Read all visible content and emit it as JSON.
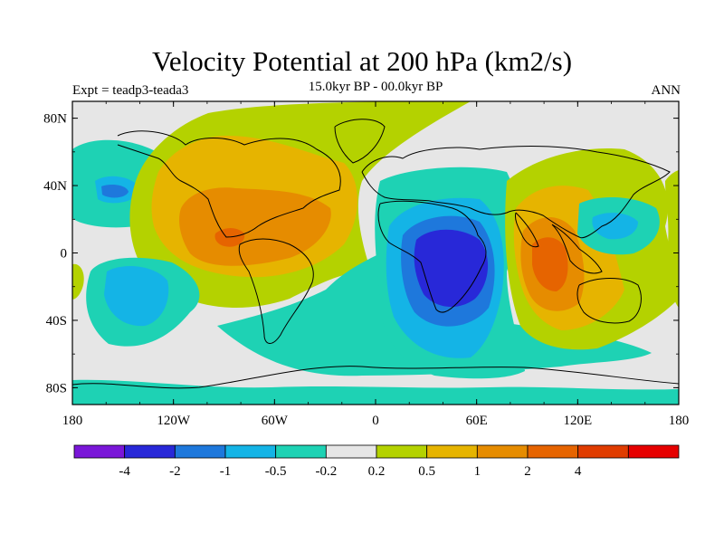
{
  "header": {
    "title": "Velocity Potential at 200 hPa (km2/s)",
    "subtitle": "15.0kyr BP - 00.0kyr BP",
    "left_label": "Expt = teadp3-teada3",
    "right_label": "ANN"
  },
  "map": {
    "lon_ticks": [
      "180",
      "120W",
      "60W",
      "0",
      "60E",
      "120E",
      "180"
    ],
    "lat_ticks": [
      "80N",
      "40N",
      "0",
      "40S",
      "80S"
    ]
  },
  "colorbar": {
    "colors": [
      "#7a16d8",
      "#2828d8",
      "#1e78dc",
      "#14b4e6",
      "#1ed2b4",
      "#e6e6e6",
      "#b4d200",
      "#e6b400",
      "#e68c00",
      "#e66400",
      "#e03c00",
      "#e60000"
    ],
    "labels": [
      "-4",
      "-2",
      "-1",
      "-0.5",
      "-0.2",
      "0.2",
      "0.5",
      "1",
      "2",
      "4"
    ]
  },
  "colors": {
    "neutral": "#e6e6e6",
    "pos1": "#b4d200",
    "pos2": "#e6b400",
    "pos3": "#e68c00",
    "pos4": "#e66400",
    "pos5": "#e03c00",
    "neg1": "#1ed2b4",
    "neg2": "#14b4e6",
    "neg3": "#1e78dc",
    "neg4": "#2828d8"
  }
}
